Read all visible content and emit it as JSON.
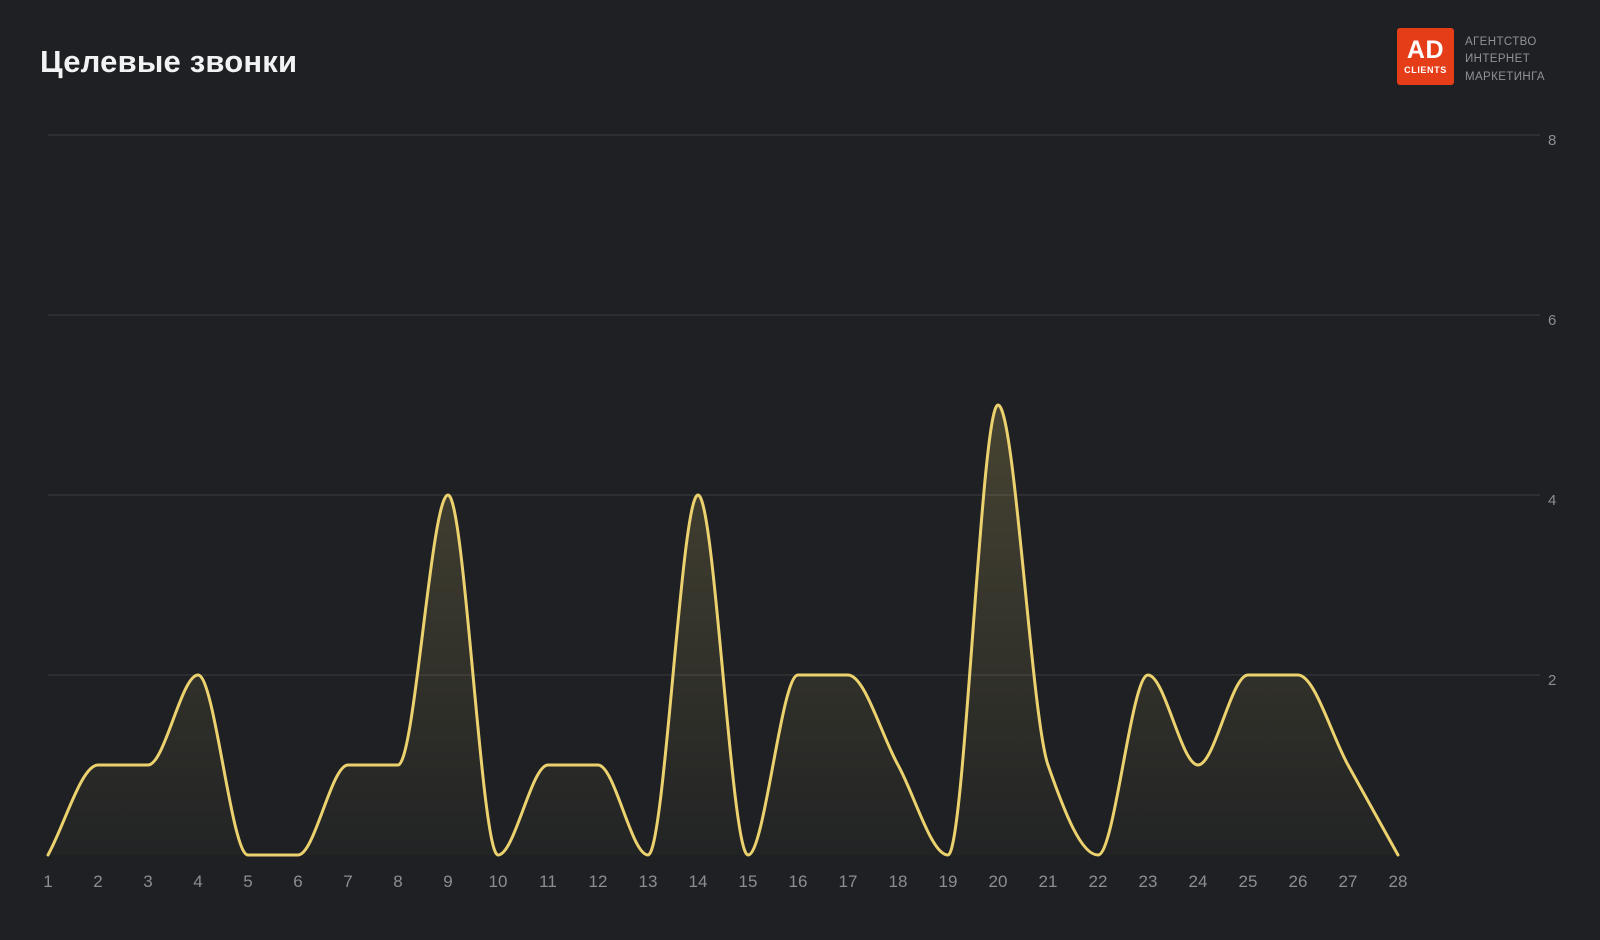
{
  "header": {
    "title": "Целевые звонки"
  },
  "brand": {
    "logo_top": "AD",
    "logo_bottom": "CLIENTS",
    "logo_color": "#e53d17",
    "tagline_lines": [
      "АГЕНТСТВО",
      "ИНТЕРНЕТ",
      "МАРКЕТИНГА"
    ]
  },
  "chart_data": {
    "type": "line",
    "title": "Целевые звонки",
    "categories": [
      1,
      2,
      3,
      4,
      5,
      6,
      7,
      8,
      9,
      10,
      11,
      12,
      13,
      14,
      15,
      16,
      17,
      18,
      19,
      20,
      21,
      22,
      23,
      24,
      25,
      26,
      27,
      28
    ],
    "values": [
      0,
      1,
      1,
      2,
      0,
      0,
      1,
      1,
      4,
      0,
      1,
      1,
      0,
      4,
      0,
      2,
      2,
      1,
      0,
      5,
      1,
      0,
      2,
      1,
      2,
      2,
      1,
      0
    ],
    "xlabel": "",
    "ylabel": "",
    "ylim": [
      0,
      8
    ],
    "yticks": [
      2,
      4,
      6,
      8
    ],
    "ytick_side": "right",
    "grid": true,
    "smooth": true,
    "legend": "none",
    "line_color": "#ecd26e",
    "area_top": "rgba(236,210,110,0.20)",
    "area_bottom": "rgba(236,210,110,0.02)",
    "grid_color": "#3a3d41",
    "axis_label_color": "#8b8e93",
    "background": "#1e2023"
  }
}
